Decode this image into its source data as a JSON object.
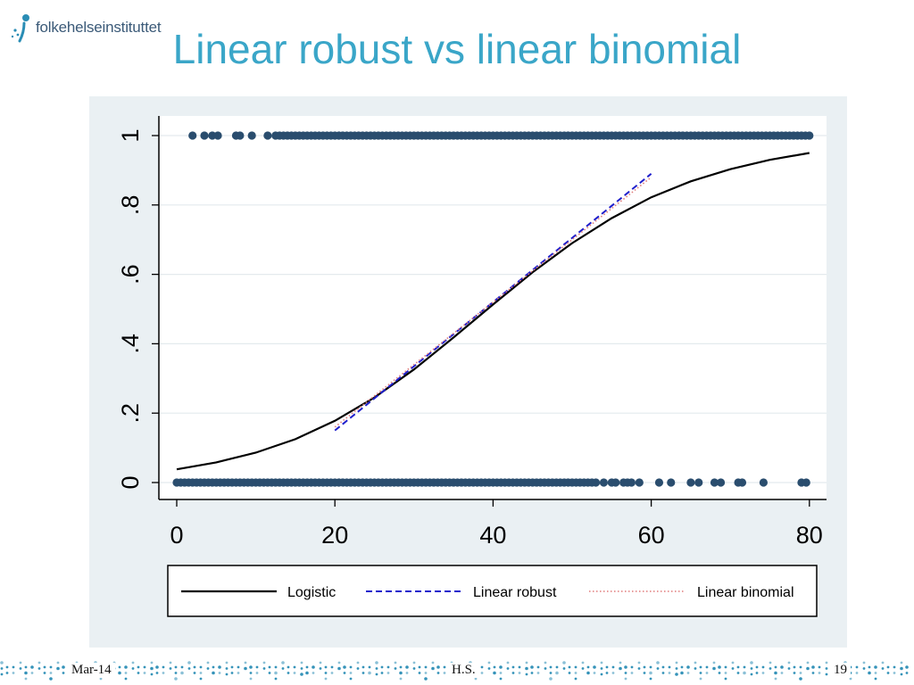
{
  "header": {
    "logo_text": "folkehelseinstituttet",
    "title": "Linear robust vs linear binomial"
  },
  "footer": {
    "date": "Mar-14",
    "author": "H.S.",
    "page": "19"
  },
  "colors": {
    "title": "#3aa6c8",
    "plot_region": "#eaf0f3",
    "points": "#2a4d6e",
    "logistic": "#000000",
    "linear_robust": "#1f1fcc",
    "linear_binomial": "#e07a7a",
    "footer_dots": "#2a8db5"
  },
  "chart_data": {
    "type": "scatter",
    "title": "",
    "xlabel": "",
    "ylabel": "",
    "xlim": [
      -3,
      82
    ],
    "ylim": [
      -0.03,
      1.05
    ],
    "xticks": [
      "0",
      "20",
      "40",
      "60",
      "80"
    ],
    "yticks": [
      "0",
      ".2",
      ".4",
      ".6",
      ".8",
      "1"
    ],
    "ytick_values": [
      0,
      0.2,
      0.4,
      0.6,
      0.8,
      1
    ],
    "xtick_values": [
      0,
      20,
      40,
      60,
      80
    ],
    "grid": true,
    "legend_position": "bottom",
    "points_y1_x": [
      2,
      3.5,
      4.5,
      5.2,
      7.5,
      8,
      9.5,
      11.5,
      12.5,
      13,
      13.5,
      14,
      14.5,
      15,
      15.5,
      16,
      16.5,
      17,
      17.5,
      18,
      18.5,
      19,
      19.5,
      20,
      20.5,
      21,
      21.5,
      22,
      22.5,
      23,
      23.5,
      24,
      24.5,
      25,
      25.5,
      26,
      26.5,
      27,
      27.5,
      28,
      28.5,
      29,
      29.5,
      30,
      30.5,
      31,
      31.5,
      32,
      32.5,
      33,
      33.5,
      34,
      34.5,
      35,
      35.5,
      36,
      36.5,
      37,
      37.5,
      38,
      38.5,
      39,
      39.5,
      40,
      40.5,
      41,
      41.5,
      42,
      42.5,
      43,
      43.5,
      44,
      44.5,
      45,
      45.5,
      46,
      46.5,
      47,
      47.5,
      48,
      48.5,
      49,
      49.5,
      50,
      50.5,
      51,
      51.5,
      52,
      52.5,
      53,
      53.5,
      54,
      54.5,
      55,
      55.5,
      56,
      56.5,
      57,
      57.5,
      58,
      58.5,
      59,
      59.5,
      60,
      60.5,
      61,
      61.5,
      62,
      62.5,
      63,
      63.5,
      64,
      64.5,
      65,
      65.5,
      66,
      66.5,
      67,
      67.5,
      68,
      68.5,
      69,
      69.5,
      70,
      70.5,
      71,
      71.5,
      72,
      72.5,
      73,
      73.5,
      74,
      74.5,
      75,
      75.5,
      76,
      76.5,
      77,
      77.5,
      78,
      78.5,
      79,
      79.5,
      80
    ],
    "points_y0_x": [
      0,
      0.5,
      1,
      1.5,
      2,
      2.5,
      3,
      3.5,
      4,
      4.5,
      5,
      5.5,
      6,
      6.5,
      7,
      7.5,
      8,
      8.5,
      9,
      9.5,
      10,
      10.5,
      11,
      11.5,
      12,
      12.5,
      13,
      13.5,
      14,
      14.5,
      15,
      15.5,
      16,
      16.5,
      17,
      17.5,
      18,
      18.5,
      19,
      19.5,
      20,
      20.5,
      21,
      21.5,
      22,
      22.5,
      23,
      23.5,
      24,
      24.5,
      25,
      25.5,
      26,
      26.5,
      27,
      27.5,
      28,
      28.5,
      29,
      29.5,
      30,
      30.5,
      31,
      31.5,
      32,
      32.5,
      33,
      33.5,
      34,
      34.5,
      35,
      35.5,
      36,
      36.5,
      37,
      37.5,
      38,
      38.5,
      39,
      39.5,
      40,
      40.5,
      41,
      41.5,
      42,
      42.5,
      43,
      43.5,
      44,
      44.5,
      45,
      45.5,
      46,
      46.5,
      47,
      47.5,
      48,
      48.5,
      49,
      49.5,
      50,
      50.5,
      51,
      51.5,
      52,
      52.5,
      53,
      54,
      55,
      55.5,
      56.5,
      57,
      57.5,
      58.5,
      61,
      62.5,
      65,
      66,
      68,
      68.8,
      71,
      71.5,
      74.2,
      79,
      79.6
    ],
    "series": [
      {
        "name": "Logistic",
        "style": "solid",
        "x": [
          0,
          5,
          10,
          15,
          20,
          25,
          30,
          35,
          40,
          45,
          50,
          55,
          60,
          65,
          70,
          75,
          80
        ],
        "y": [
          0.038,
          0.058,
          0.086,
          0.125,
          0.178,
          0.245,
          0.326,
          0.418,
          0.513,
          0.606,
          0.69,
          0.762,
          0.822,
          0.868,
          0.903,
          0.93,
          0.95
        ]
      },
      {
        "name": "Linear robust",
        "style": "dashed",
        "x": [
          20,
          60
        ],
        "y": [
          0.15,
          0.89
        ]
      },
      {
        "name": "Linear binomial",
        "style": "dotted",
        "x": [
          20,
          60
        ],
        "y": [
          0.16,
          0.88
        ]
      }
    ]
  }
}
